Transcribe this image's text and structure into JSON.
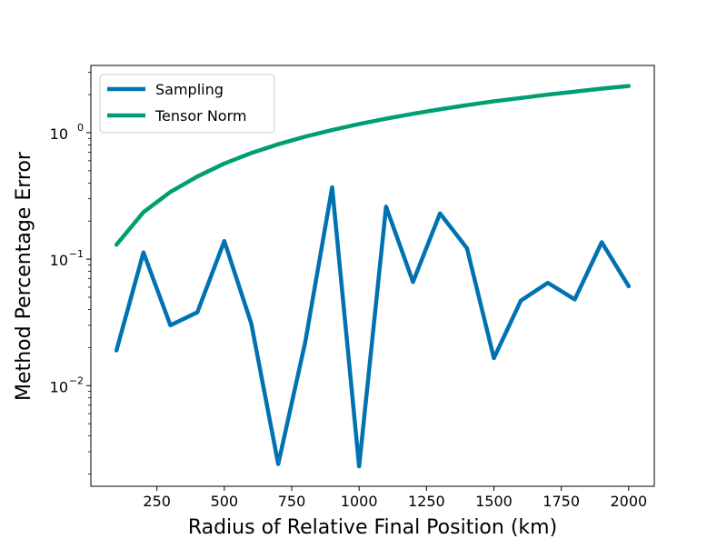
{
  "chart_data": {
    "type": "line",
    "title": "",
    "xlabel": "Radius of Relative Final Position (km)",
    "ylabel": "Method Percentage Error",
    "y_scale": "log",
    "xlim": [
      5,
      2095
    ],
    "ylim": [
      0.0016,
      3.4
    ],
    "grid": false,
    "legend_position": "top-left",
    "x": [
      100,
      200,
      300,
      400,
      500,
      600,
      700,
      800,
      900,
      1000,
      1100,
      1200,
      1300,
      1400,
      1500,
      1600,
      1700,
      1800,
      1900,
      2000
    ],
    "x_ticks": [
      250,
      500,
      750,
      1000,
      1250,
      1500,
      1750,
      2000
    ],
    "x_tick_labels": [
      "250",
      "500",
      "750",
      "1000",
      "1250",
      "1500",
      "1750",
      "2000"
    ],
    "y_ticks": [
      0.01,
      0.1,
      1
    ],
    "y_tick_base_labels": [
      "10",
      "10",
      "10"
    ],
    "y_tick_exponent_labels": [
      "−2",
      "−1",
      "0"
    ],
    "series": [
      {
        "name": "Sampling",
        "color": "#0072b2",
        "values": [
          0.019,
          0.113,
          0.03,
          0.038,
          0.139,
          0.031,
          0.0024,
          0.022,
          0.37,
          0.0023,
          0.26,
          0.066,
          0.23,
          0.122,
          0.0165,
          0.047,
          0.065,
          0.048,
          0.136,
          0.061
        ]
      },
      {
        "name": "Tensor Norm",
        "color": "#009e73",
        "values": [
          0.13,
          0.235,
          0.34,
          0.45,
          0.57,
          0.69,
          0.81,
          0.93,
          1.05,
          1.17,
          1.29,
          1.41,
          1.53,
          1.65,
          1.77,
          1.88,
          2.0,
          2.11,
          2.23,
          2.34
        ]
      }
    ]
  }
}
